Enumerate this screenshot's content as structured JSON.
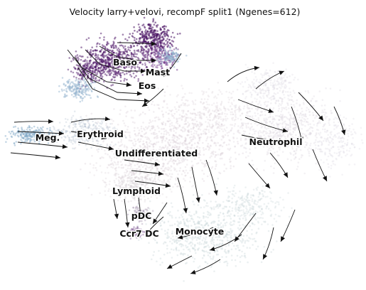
{
  "chart_data": {
    "type": "scatter",
    "title": "Velocity larry+velovi, recompF split1 (Ngenes=612)",
    "xlabel": "",
    "ylabel": "",
    "axes_visible": false,
    "grid": false,
    "overlay": "velocity streamlines",
    "colors": {
      "Undifferentiated": "#d9cfd6",
      "Neutrophil": "#dcd8e0",
      "Monocyte": "#c7d3d8",
      "Baso": "#4b1465",
      "Mast": "#6b2d82",
      "Eos": "#8fb0cc",
      "Meg": "#7fa7c5",
      "Erythroid": "#b9c6d4",
      "Lymphoid": "#cfc9d2",
      "pDC": "#9a8aa6",
      "Ccr7 DC": "#7a4f8f"
    },
    "clusters": [
      {
        "name": "Baso",
        "label": "Baso"
      },
      {
        "name": "Mast",
        "label": "Mast"
      },
      {
        "name": "Eos",
        "label": "Eos"
      },
      {
        "name": "Meg",
        "label": "Meg."
      },
      {
        "name": "Erythroid",
        "label": "Erythroid"
      },
      {
        "name": "Undifferentiated",
        "label": "Undifferentiated"
      },
      {
        "name": "Neutrophil",
        "label": "Neutrophil"
      },
      {
        "name": "Lymphoid",
        "label": "Lymphoid"
      },
      {
        "name": "pDC",
        "label": "pDC"
      },
      {
        "name": "Ccr7 DC",
        "label": "Ccr7 DC"
      },
      {
        "name": "Monocyte",
        "label": "Monocyte"
      }
    ]
  }
}
